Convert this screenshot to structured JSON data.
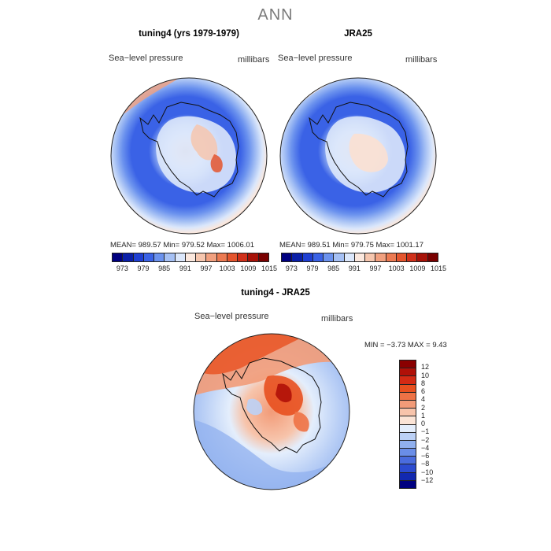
{
  "figure": {
    "title": "ANN"
  },
  "panels": [
    {
      "title": "tuning4 (yrs 1979-1979)",
      "variable": "Sea−level pressure",
      "units": "millibars",
      "stats": "MEAN= 989.57   Min= 979.52   Max= 1006.01"
    },
    {
      "title": "JRA25",
      "variable": "Sea−level pressure",
      "units": "millibars",
      "stats": "MEAN= 989.51   Min= 979.75   Max= 1001.17"
    }
  ],
  "diff": {
    "title": "tuning4 - JRA25",
    "variable": "Sea−level pressure",
    "units": "millibars",
    "stats": "MIN =   −3.73  MAX =    9.43"
  },
  "colorbar_main": {
    "labels": [
      "973",
      "979",
      "985",
      "991",
      "997",
      "1003",
      "1009",
      "1015"
    ],
    "colors": [
      "#000080",
      "#0a1fa8",
      "#1f3fd2",
      "#3a62e6",
      "#6b92ee",
      "#a5c0f4",
      "#dbe7fb",
      "#fbe8de",
      "#f6c6ae",
      "#f1a07f",
      "#ec7a52",
      "#e4552e",
      "#d0301a",
      "#a81208",
      "#7a0000"
    ]
  },
  "colorbar_diff": {
    "labels": [
      "12",
      "10",
      "8",
      "6",
      "4",
      "2",
      "1",
      "0",
      "−1",
      "−2",
      "−4",
      "−6",
      "−8",
      "−10",
      "−12"
    ],
    "colors": [
      "#8a0000",
      "#b01008",
      "#d42a14",
      "#e8501f",
      "#ee7245",
      "#f29b78",
      "#f7c4ab",
      "#fbe4d6",
      "#e4eefc",
      "#bcd1f6",
      "#90b0ef",
      "#6a8ee8",
      "#4a6cde",
      "#2c4bd0",
      "#1229b0",
      "#000080"
    ]
  }
}
